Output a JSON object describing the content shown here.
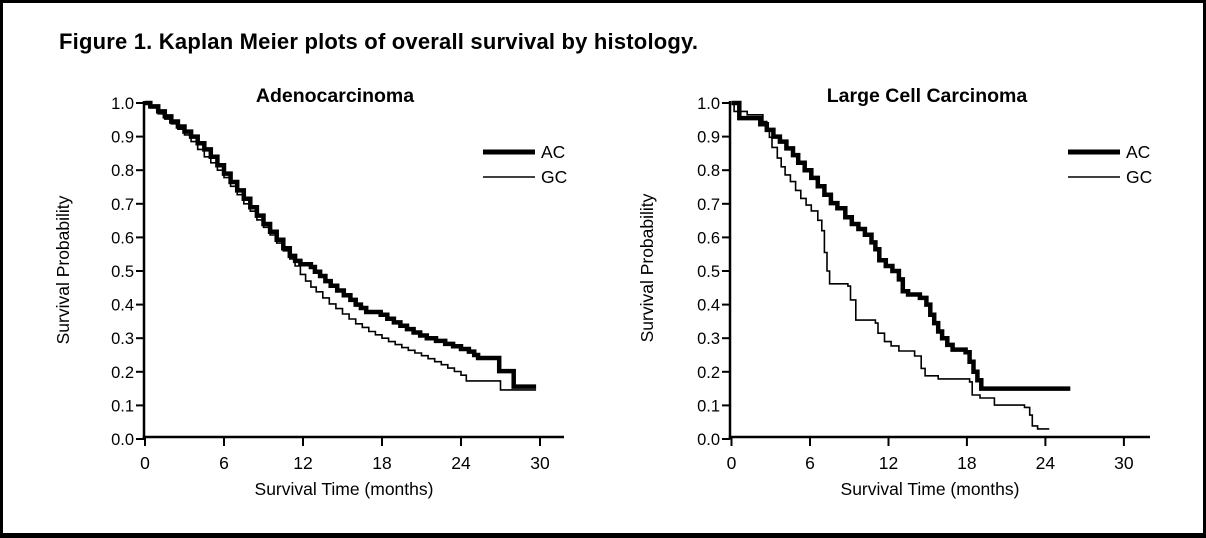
{
  "figure": {
    "title": "Figure 1. Kaplan Meier plots of overall survival by histology."
  },
  "colors": {
    "foreground": "#000000",
    "background": "#ffffff"
  },
  "chart_data": [
    {
      "type": "line",
      "subtype": "kaplan-meier-step",
      "title": "Adenocarcinoma",
      "xlabel": "Survival Time (months)",
      "ylabel": "Survival Probability",
      "xlim": [
        0,
        32
      ],
      "ylim": [
        0.0,
        1.0
      ],
      "x_ticks": [
        0,
        6,
        12,
        18,
        24,
        30
      ],
      "y_ticks": [
        "0.0",
        "0.1",
        "0.2",
        "0.3",
        "0.4",
        "0.5",
        "0.6",
        "0.7",
        "0.8",
        "0.9",
        "1.0"
      ],
      "grid": false,
      "legend_position": "upper right",
      "series": [
        {
          "name": "AC",
          "style": "thick",
          "points": [
            [
              0,
              1.0
            ],
            [
              0.4,
              0.99
            ],
            [
              1,
              0.975
            ],
            [
              1.5,
              0.96
            ],
            [
              2,
              0.945
            ],
            [
              2.5,
              0.93
            ],
            [
              3,
              0.915
            ],
            [
              3.5,
              0.9
            ],
            [
              4,
              0.88
            ],
            [
              4.5,
              0.862
            ],
            [
              5,
              0.84
            ],
            [
              5.5,
              0.815
            ],
            [
              6,
              0.79
            ],
            [
              6.5,
              0.765
            ],
            [
              7,
              0.74
            ],
            [
              7.5,
              0.715
            ],
            [
              8,
              0.69
            ],
            [
              8.5,
              0.665
            ],
            [
              9,
              0.64
            ],
            [
              9.5,
              0.617
            ],
            [
              10,
              0.593
            ],
            [
              10.5,
              0.568
            ],
            [
              11,
              0.545
            ],
            [
              11.4,
              0.53
            ],
            [
              11.8,
              0.52
            ],
            [
              12.6,
              0.512
            ],
            [
              12.9,
              0.498
            ],
            [
              13.3,
              0.485
            ],
            [
              13.7,
              0.47
            ],
            [
              14.1,
              0.456
            ],
            [
              14.6,
              0.442
            ],
            [
              15.1,
              0.428
            ],
            [
              15.6,
              0.414
            ],
            [
              16,
              0.4
            ],
            [
              16.4,
              0.39
            ],
            [
              16.8,
              0.378
            ],
            [
              17.9,
              0.37
            ],
            [
              18.4,
              0.358
            ],
            [
              18.9,
              0.347
            ],
            [
              19.4,
              0.337
            ],
            [
              19.9,
              0.327
            ],
            [
              20.4,
              0.317
            ],
            [
              20.9,
              0.308
            ],
            [
              21.4,
              0.3
            ],
            [
              22.1,
              0.292
            ],
            [
              22.8,
              0.283
            ],
            [
              23.4,
              0.276
            ],
            [
              24,
              0.268
            ],
            [
              24.6,
              0.26
            ],
            [
              25,
              0.25
            ],
            [
              25.3,
              0.241
            ],
            [
              26.9,
              0.202
            ],
            [
              28,
              0.156
            ],
            [
              29.7,
              0.156
            ]
          ]
        },
        {
          "name": "GC",
          "style": "thin",
          "points": [
            [
              0,
              1.0
            ],
            [
              0.4,
              0.985
            ],
            [
              1,
              0.968
            ],
            [
              1.5,
              0.952
            ],
            [
              2,
              0.938
            ],
            [
              2.5,
              0.922
            ],
            [
              3,
              0.905
            ],
            [
              3.5,
              0.885
            ],
            [
              4,
              0.862
            ],
            [
              4.5,
              0.84
            ],
            [
              5,
              0.822
            ],
            [
              5.5,
              0.8
            ],
            [
              6,
              0.778
            ],
            [
              6.5,
              0.752
            ],
            [
              7,
              0.727
            ],
            [
              7.5,
              0.7
            ],
            [
              8,
              0.678
            ],
            [
              8.5,
              0.652
            ],
            [
              9,
              0.63
            ],
            [
              9.5,
              0.607
            ],
            [
              10,
              0.583
            ],
            [
              10.5,
              0.56
            ],
            [
              11,
              0.536
            ],
            [
              11.4,
              0.515
            ],
            [
              11.8,
              0.49
            ],
            [
              12.2,
              0.47
            ],
            [
              12.6,
              0.452
            ],
            [
              13,
              0.438
            ],
            [
              13.5,
              0.42
            ],
            [
              14,
              0.402
            ],
            [
              14.5,
              0.388
            ],
            [
              15,
              0.372
            ],
            [
              15.5,
              0.357
            ],
            [
              16,
              0.343
            ],
            [
              16.5,
              0.332
            ],
            [
              17,
              0.32
            ],
            [
              17.5,
              0.31
            ],
            [
              18,
              0.3
            ],
            [
              18.5,
              0.29
            ],
            [
              19,
              0.281
            ],
            [
              19.5,
              0.272
            ],
            [
              20,
              0.264
            ],
            [
              20.5,
              0.256
            ],
            [
              21,
              0.248
            ],
            [
              21.5,
              0.239
            ],
            [
              22,
              0.23
            ],
            [
              22.5,
              0.221
            ],
            [
              23,
              0.211
            ],
            [
              23.5,
              0.201
            ],
            [
              24,
              0.19
            ],
            [
              24.4,
              0.173
            ],
            [
              27,
              0.146
            ],
            [
              29.7,
              0.146
            ]
          ]
        }
      ]
    },
    {
      "type": "line",
      "subtype": "kaplan-meier-step",
      "title": "Large Cell Carcinoma",
      "xlabel": "Survival Time (months)",
      "ylabel": "Survival Probability",
      "xlim": [
        0,
        32
      ],
      "ylim": [
        0.0,
        1.0
      ],
      "x_ticks": [
        0,
        6,
        12,
        18,
        24,
        30
      ],
      "y_ticks": [
        "0.0",
        "0.1",
        "0.2",
        "0.3",
        "0.4",
        "0.5",
        "0.6",
        "0.7",
        "0.8",
        "0.9",
        "1.0"
      ],
      "grid": false,
      "legend_position": "upper right",
      "series": [
        {
          "name": "AC",
          "style": "thick",
          "points": [
            [
              0,
              1.0
            ],
            [
              0.6,
              0.955
            ],
            [
              2.2,
              0.937
            ],
            [
              2.7,
              0.92
            ],
            [
              3.2,
              0.9
            ],
            [
              3.7,
              0.885
            ],
            [
              4.2,
              0.865
            ],
            [
              4.7,
              0.845
            ],
            [
              5.1,
              0.822
            ],
            [
              5.6,
              0.8
            ],
            [
              6.1,
              0.777
            ],
            [
              6.6,
              0.752
            ],
            [
              7.1,
              0.727
            ],
            [
              7.6,
              0.702
            ],
            [
              8.1,
              0.687
            ],
            [
              8.7,
              0.66
            ],
            [
              9.2,
              0.64
            ],
            [
              9.7,
              0.625
            ],
            [
              10.2,
              0.608
            ],
            [
              10.7,
              0.585
            ],
            [
              11,
              0.565
            ],
            [
              11.3,
              0.532
            ],
            [
              11.8,
              0.515
            ],
            [
              12.3,
              0.5
            ],
            [
              12.8,
              0.475
            ],
            [
              13.1,
              0.44
            ],
            [
              13.5,
              0.43
            ],
            [
              14.4,
              0.42
            ],
            [
              14.9,
              0.4
            ],
            [
              15.2,
              0.37
            ],
            [
              15.5,
              0.345
            ],
            [
              15.8,
              0.32
            ],
            [
              16.1,
              0.3
            ],
            [
              16.5,
              0.28
            ],
            [
              16.9,
              0.266
            ],
            [
              17.9,
              0.258
            ],
            [
              18.2,
              0.23
            ],
            [
              18.5,
              0.2
            ],
            [
              18.8,
              0.175
            ],
            [
              19.1,
              0.15
            ],
            [
              25.9,
              0.15
            ]
          ]
        },
        {
          "name": "GC",
          "style": "thin",
          "points": [
            [
              0,
              1.0
            ],
            [
              0.2,
              0.975
            ],
            [
              1.2,
              0.965
            ],
            [
              2.4,
              0.945
            ],
            [
              2.7,
              0.92
            ],
            [
              2.9,
              0.898
            ],
            [
              3.1,
              0.868
            ],
            [
              3.5,
              0.836
            ],
            [
              3.8,
              0.81
            ],
            [
              4.1,
              0.786
            ],
            [
              4.5,
              0.766
            ],
            [
              4.9,
              0.74
            ],
            [
              5.3,
              0.716
            ],
            [
              5.7,
              0.696
            ],
            [
              6.1,
              0.679
            ],
            [
              6.6,
              0.651
            ],
            [
              6.9,
              0.62
            ],
            [
              7.1,
              0.555
            ],
            [
              7.3,
              0.5
            ],
            [
              7.5,
              0.462
            ],
            [
              8.9,
              0.455
            ],
            [
              9.1,
              0.414
            ],
            [
              9.5,
              0.354
            ],
            [
              11,
              0.345
            ],
            [
              11.2,
              0.315
            ],
            [
              11.7,
              0.29
            ],
            [
              12.2,
              0.277
            ],
            [
              12.8,
              0.262
            ],
            [
              14,
              0.247
            ],
            [
              14.5,
              0.21
            ],
            [
              14.8,
              0.188
            ],
            [
              15.8,
              0.179
            ],
            [
              18.2,
              0.17
            ],
            [
              18.4,
              0.131
            ],
            [
              19,
              0.122
            ],
            [
              20.1,
              0.101
            ],
            [
              22.4,
              0.094
            ],
            [
              22.8,
              0.071
            ],
            [
              23,
              0.039
            ],
            [
              23.4,
              0.03
            ],
            [
              24.3,
              0.03
            ]
          ]
        }
      ]
    }
  ]
}
